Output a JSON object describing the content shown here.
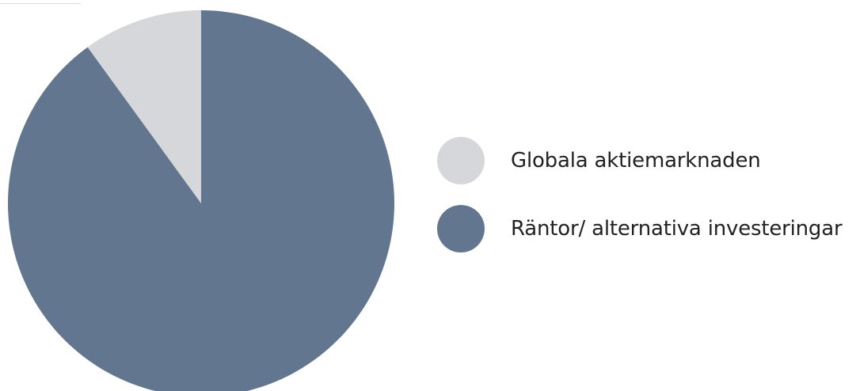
{
  "chart_data": {
    "type": "pie",
    "start": "12 o'clock",
    "direction": "counter-clockwise",
    "slices": [
      {
        "label": "Globala aktiemarknaden",
        "value": 10,
        "color": "#d6d7da"
      },
      {
        "label": "Räntor/ alternativa investeringar",
        "value": 90,
        "color": "#62778f"
      }
    ],
    "legend": {
      "position": "right",
      "marker": "circle"
    }
  }
}
